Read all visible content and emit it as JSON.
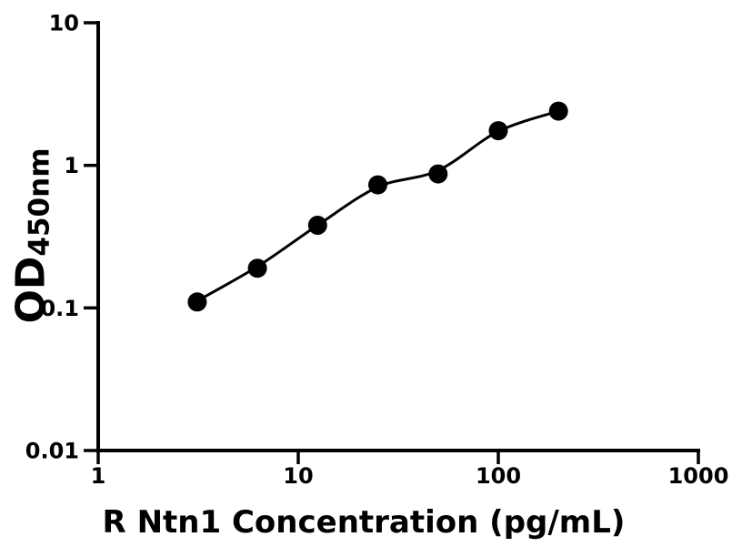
{
  "figure": {
    "background_color": "#ffffff",
    "foreground_color": "#000000"
  },
  "chart_data": {
    "type": "scatter",
    "title": "",
    "xlabel": "R Ntn1 Concentration (pg/mL)",
    "ylabel": {
      "main": "OD",
      "subscript": "450nm"
    },
    "xscale": "log",
    "yscale": "log",
    "xlim": [
      1,
      1000
    ],
    "ylim": [
      0.01,
      10
    ],
    "x_ticks": {
      "values": [
        1,
        10,
        100,
        1000
      ],
      "labels": [
        "1",
        "10",
        "100",
        "1000"
      ]
    },
    "y_ticks": {
      "values": [
        10,
        1,
        0.1,
        0.01
      ],
      "labels": [
        "10",
        "1",
        "0.1",
        "0.01"
      ]
    },
    "grid": false,
    "legend": false,
    "series": [
      {
        "name": "standard-points",
        "marker": "circle",
        "marker_radius_px": 10.5,
        "color": "#000000",
        "x": [
          3.125,
          6.25,
          12.5,
          25,
          50,
          100,
          200
        ],
        "y": [
          0.11,
          0.19,
          0.38,
          0.73,
          0.87,
          1.75,
          2.4
        ]
      }
    ],
    "fit_curve": {
      "name": "fitted-standard-curve",
      "color": "#000000",
      "stroke_width_px": 3,
      "x": [
        3.125,
        6.25,
        12.5,
        25,
        50,
        100,
        200
      ],
      "y": [
        0.112,
        0.195,
        0.38,
        0.705,
        0.92,
        1.73,
        2.4
      ]
    }
  }
}
